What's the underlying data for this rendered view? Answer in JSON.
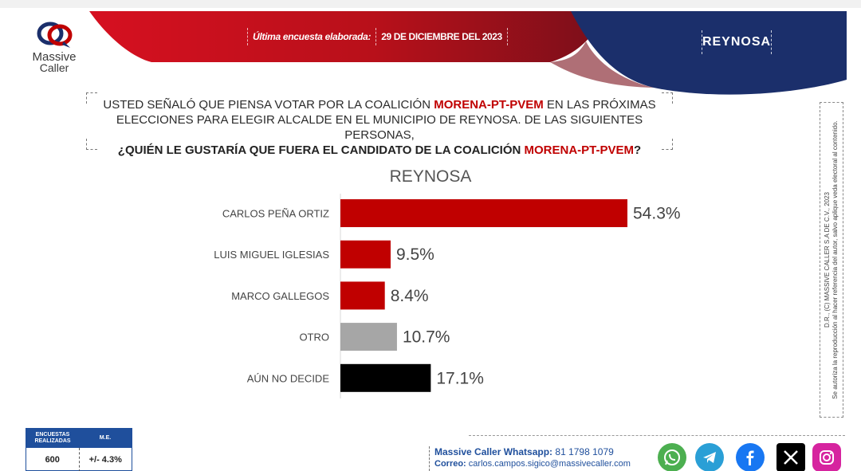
{
  "header": {
    "brand_line1": "Massive",
    "brand_line2": "Caller",
    "survey_label": "Última encuesta elaborada:",
    "survey_date": "29 DE DICIEMBRE  DEL 2023",
    "city": "REYNOSA"
  },
  "question": {
    "part1": "USTED SEÑALÓ QUE PIENSA VOTAR POR LA COALICIÓN ",
    "coalition1": "MORENA-PT-PVEM",
    "part2": " EN LAS PRÓXIMAS",
    "line2": "ELECCIONES PARA ELEGIR ALCALDE EN EL MUNICIPIO DE REYNOSA. DE LAS SIGUIENTES PERSONAS,",
    "part3": "¿QUIÉN LE GUSTARÍA QUE FUERA EL CANDIDATO DE LA COALICIÓN ",
    "coalition2": "MORENA-PT-PVEM",
    "part4": "?"
  },
  "side_note": {
    "line1": "D.R., (C) MASSIVE CALLER S.A DE C.V., 2023",
    "line2": "Se autoriza la reproducción al hacer referencia del autor, salvo aplique veda electoral al contenido."
  },
  "chart_data": {
    "type": "bar",
    "orientation": "horizontal",
    "title": "REYNOSA",
    "categories": [
      "CARLOS PEÑA ORTIZ",
      "LUIS MIGUEL IGLESIAS",
      "MARCO GALLEGOS",
      "OTRO",
      "AÚN NO DECIDE"
    ],
    "values": [
      54.3,
      9.5,
      8.4,
      10.7,
      17.1
    ],
    "value_labels": [
      "54.3%",
      "9.5%",
      "8.4%",
      "10.7%",
      "17.1%"
    ],
    "colors": [
      "#c00000",
      "#c00000",
      "#c00000",
      "#a6a6a6",
      "#000000"
    ],
    "xlim": [
      0,
      60
    ],
    "unit": "%",
    "grid": false,
    "legend": "none"
  },
  "stats": {
    "h1": "ENCUESTAS REALIZADAS",
    "h2": "M.E.",
    "v1": "600",
    "v2": "+/- 4.3%"
  },
  "contact": {
    "label": "Massive Caller Whatsapp:",
    "phone": " 81 1798 1079",
    "email_label": "Correo:",
    "email": " carlos.campos.sigico@massivecaller.com"
  },
  "social": [
    "whatsapp-icon",
    "telegram-icon",
    "facebook-icon",
    "x-icon",
    "instagram-icon"
  ],
  "colors": {
    "red": "#c00000",
    "navy": "#1b2f6b",
    "blue": "#1f4f9c"
  }
}
